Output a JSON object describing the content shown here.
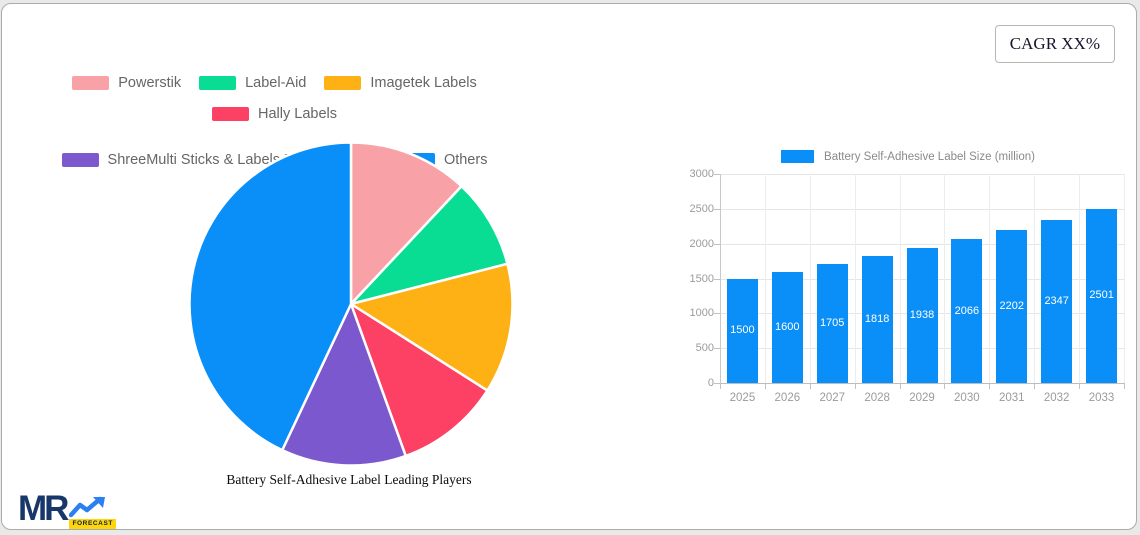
{
  "cagr_box": {
    "label": "CAGR XX%"
  },
  "logo": {
    "text": "MR",
    "subtext": "FORECAST"
  },
  "colors": {
    "accent_blue": "#0a8ef7",
    "logo_navy": "#17376a",
    "logo_yellow": "#ffd60a",
    "legend_text": "#666666",
    "axis_text": "#9b9b9b"
  },
  "chart_data": [
    {
      "type": "pie",
      "title": "Battery Self-Adhesive Label Leading Players",
      "labels": [
        "Powerstik",
        "Label-Aid",
        "Imagetek Labels",
        "Hally Labels",
        "ShreeMulti Sticks & Labels Private Limited",
        "Others"
      ],
      "values": [
        12,
        9,
        13,
        10.5,
        12.5,
        43
      ],
      "colors": [
        "#f8a2a7",
        "#09dd94",
        "#fdb115",
        "#fc4164",
        "#7b58cd",
        "#0a8ef7"
      ],
      "legend_position": "top",
      "start_angle_deg": -90,
      "direction": "clockwise"
    },
    {
      "type": "bar",
      "legend_label": "Battery Self-Adhesive Label Size (million)",
      "categories": [
        "2025",
        "2026",
        "2027",
        "2028",
        "2029",
        "2030",
        "2031",
        "2032",
        "2033"
      ],
      "values": [
        1500,
        1600,
        1705,
        1818,
        1938,
        2066,
        2202,
        2347,
        2501
      ],
      "bar_color": "#0a8ef7",
      "ylim": [
        0,
        3000
      ],
      "ytick_step": 500,
      "grid": true,
      "legend_position": "top",
      "value_label_style": "white, centered inside bar"
    }
  ]
}
